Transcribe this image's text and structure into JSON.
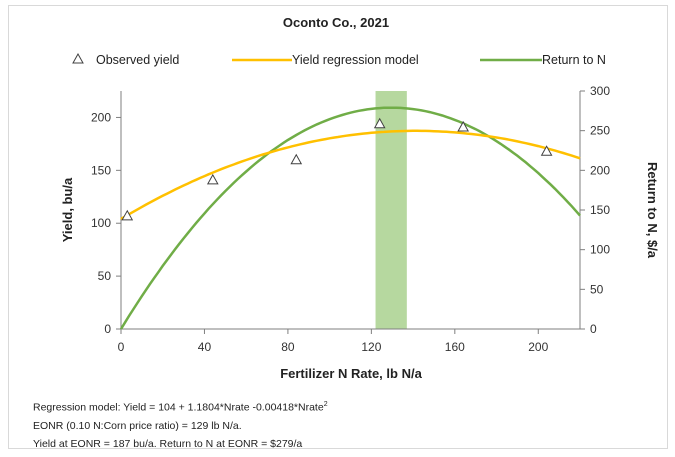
{
  "chart_data": {
    "type": "line",
    "title": "Oconto Co., 2021",
    "xlabel": "Fertilizer N Rate, lb N/a",
    "ylabel": "Yield, bu/a",
    "y2label": "Return to N, $/a",
    "xlim": [
      0,
      220
    ],
    "ylim": [
      0,
      225
    ],
    "y2lim": [
      0,
      300
    ],
    "x_ticks": [
      0,
      40,
      80,
      120,
      160,
      200
    ],
    "y_ticks": [
      0,
      50,
      100,
      150,
      200
    ],
    "y2_ticks": [
      0,
      50,
      100,
      150,
      200,
      250,
      300
    ],
    "legend_position": "top",
    "legend": [
      "Observed yield",
      "Yield regression model",
      "Return to N"
    ],
    "observed_yield": {
      "name": "Observed yield",
      "x": [
        3,
        44,
        84,
        124,
        164,
        204
      ],
      "y": [
        107,
        141,
        160,
        194,
        191,
        168
      ]
    },
    "yield_model": {
      "name": "Yield regression model",
      "x_range": [
        0,
        220
      ],
      "intercept": 104,
      "linear": 1.1804,
      "quadratic": -0.00418
    },
    "return_to_n": {
      "name": "Return to N",
      "axis": "right",
      "x_range": [
        0,
        220
      ],
      "curve_points": [
        [
          0,
          0
        ],
        [
          129,
          279
        ],
        [
          220,
          143
        ]
      ]
    },
    "eonr_band": {
      "x_from": 122,
      "x_to": 137,
      "color": "#a9d18e"
    },
    "colors": {
      "yield_model": "#ffc000",
      "return_to_n": "#70ad47",
      "markers": "#404040"
    }
  },
  "notes": {
    "line1_prefix": "Regression model:  Yield = 104 + 1.1804*Nrate -0.00418*Nrate",
    "line1_sup": "2",
    "line2": "EONR (0.10 N:Corn price ratio) = 129 lb N/a.",
    "line3": "Yield at EONR = 187 bu/a. Return to N at EONR = $279/a"
  }
}
